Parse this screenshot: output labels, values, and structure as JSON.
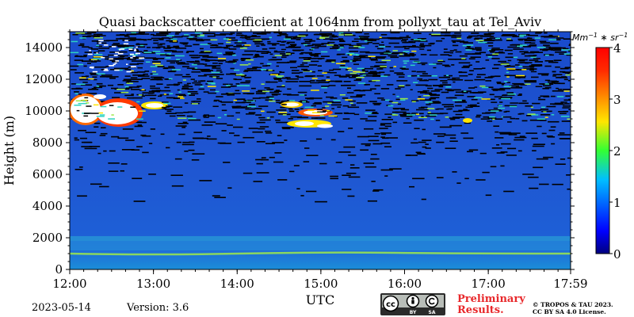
{
  "chart_data": {
    "type": "heatmap",
    "title": "Quasi backscatter coefficient at 1064nm from pollyxt_tau at Tel_Aviv",
    "xlabel": "UTC",
    "ylabel": "Height (m)",
    "x_range": [
      "12:00",
      "17:59"
    ],
    "ylim": [
      0,
      15000
    ],
    "x_ticks": [
      "12:00",
      "13:00",
      "14:00",
      "15:00",
      "16:00",
      "17:00",
      "17:59"
    ],
    "y_ticks": [
      0,
      2000,
      4000,
      6000,
      8000,
      10000,
      12000,
      14000
    ],
    "colorbar": {
      "label": "Mm^-1 * sr^-1",
      "range": [
        0,
        4
      ],
      "ticks": [
        0,
        1,
        2,
        3,
        4
      ],
      "colormap": "jet"
    },
    "features": [
      {
        "layer": "aerosol layer",
        "height_m": 1000,
        "value": 1.5
      },
      {
        "layer": "boundary layer",
        "height_range_m": [
          0,
          1900
        ],
        "value": 0.8
      },
      {
        "layer": "cirrus cloud",
        "time_range": [
          "12:00",
          "13:10"
        ],
        "height_range_m": [
          8800,
          11000
        ],
        "value": 4
      },
      {
        "layer": "cirrus cloud",
        "time_range": [
          "14:35",
          "15:10"
        ],
        "height_range_m": [
          9000,
          10400
        ],
        "value": 4
      }
    ]
  },
  "footer": {
    "date": "2023-05-14",
    "version": "Version: 3.6",
    "preliminary": [
      "Preliminary",
      "Results."
    ],
    "copyright": [
      "© TROPOS & TAU 2023.",
      "CC BY SA 4.0 License."
    ],
    "license_badge": [
      "cc",
      "BY",
      "SA"
    ]
  },
  "colors": {
    "background_signal": "#1f5bd6",
    "noise": "#000000",
    "cloud": "#ffffff"
  }
}
